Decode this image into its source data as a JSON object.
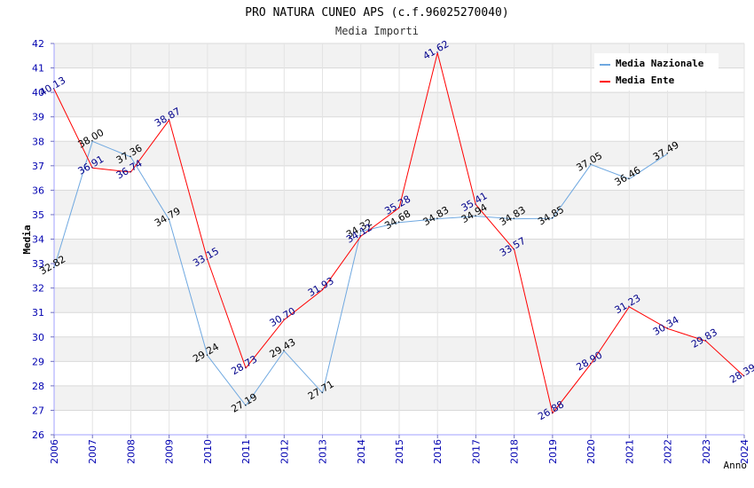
{
  "chart_data": {
    "type": "line",
    "title": "PRO NATURA CUNEO APS (c.f.96025270040)",
    "subtitle": "Media Importi",
    "xlabel": "Anno",
    "ylabel": "Media",
    "ylim": [
      26,
      42
    ],
    "yticks": [
      "26",
      "27",
      "28",
      "29",
      "30",
      "31",
      "32",
      "33",
      "34",
      "35",
      "36",
      "37",
      "38",
      "39",
      "40",
      "41",
      "42"
    ],
    "categories": [
      "2006",
      "2007",
      "2008",
      "2009",
      "2010",
      "2011",
      "2012",
      "2013",
      "2014",
      "2015",
      "2016",
      "2017",
      "2018",
      "2019",
      "2020",
      "2021",
      "2022",
      "2023",
      "2024"
    ],
    "grid": true,
    "legend_position": "top-right",
    "series": [
      {
        "name": "Media Nazionale",
        "color": "#6fa8e0",
        "label_color": "#000000",
        "values": [
          32.82,
          38.0,
          37.36,
          34.79,
          29.24,
          27.19,
          29.43,
          27.71,
          34.32,
          34.68,
          34.83,
          34.94,
          34.83,
          34.85,
          37.05,
          36.46,
          37.49,
          null,
          null
        ],
        "labels": [
          "32.82",
          "38.00",
          "37.36",
          "34.79",
          "29.24",
          "27.19",
          "29.43",
          "27.71",
          "34.32",
          "34.68",
          "34.83",
          "34.94",
          "34.83",
          "34.85",
          "37.05",
          "36.46",
          "37.49",
          null,
          null
        ]
      },
      {
        "name": "Media Ente",
        "color": "#ff0000",
        "label_color": "#00008b",
        "values": [
          40.13,
          36.91,
          36.74,
          38.87,
          33.15,
          28.73,
          30.7,
          31.93,
          34.12,
          35.28,
          41.62,
          35.41,
          33.57,
          26.88,
          28.9,
          31.23,
          30.34,
          29.83,
          28.39
        ],
        "labels": [
          "40.13",
          "36.91",
          "36.74",
          "38.87",
          "33.15",
          "28.73",
          "30.70",
          "31.93",
          "34.12",
          "35.28",
          "41.62",
          "35.41",
          "33.57",
          "26.88",
          "28.90",
          "31.23",
          "30.34",
          "29.83",
          "28.39"
        ]
      }
    ]
  }
}
